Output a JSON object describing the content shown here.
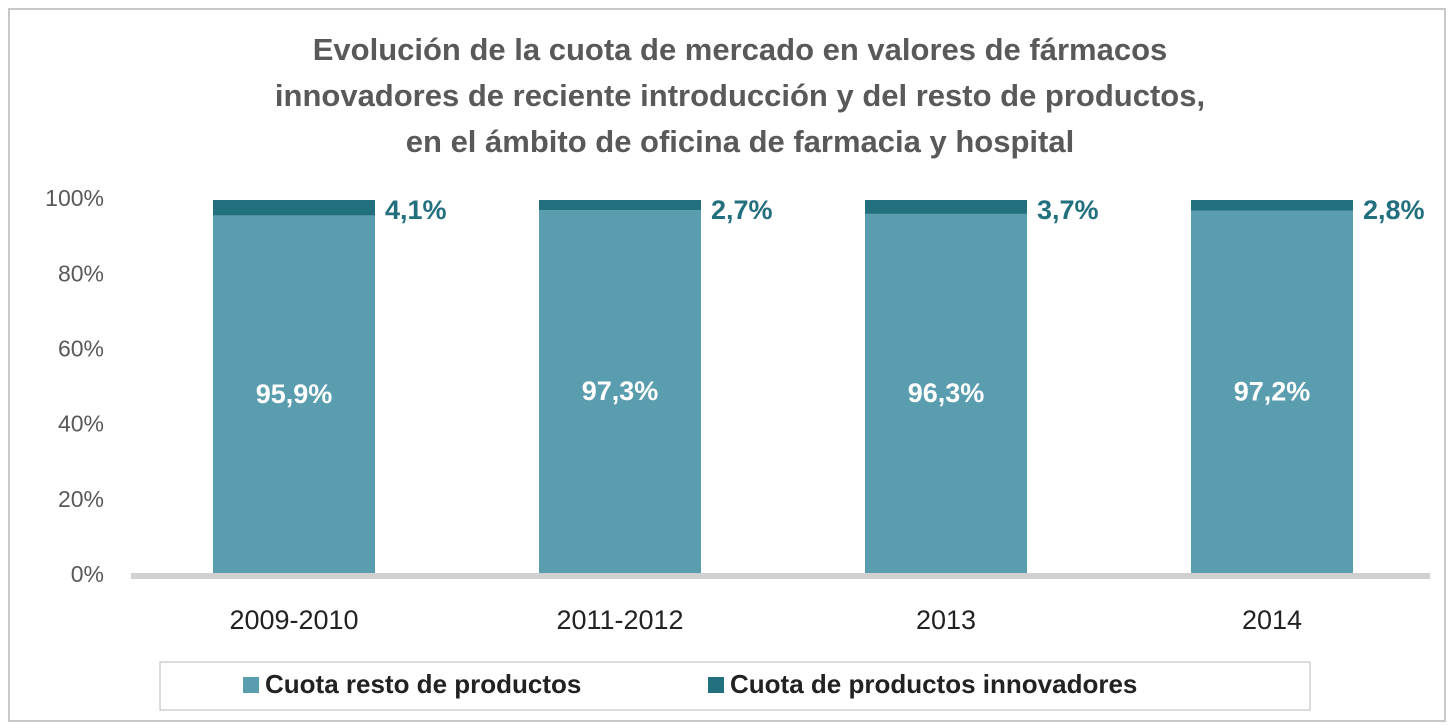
{
  "chart_data": {
    "type": "stacked_bar",
    "title": [
      "Evolución de la cuota de mercado en valores de fármacos",
      "innovadores de reciente introducción y del resto de productos,",
      "en el ámbito de oficina de farmacia y hospital"
    ],
    "categories": [
      "2009-2010",
      "2011-2012",
      "2013",
      "2014"
    ],
    "series": [
      {
        "name": "Cuota resto de productos",
        "color": "#5a9daf",
        "values": [
          95.9,
          97.3,
          96.3,
          97.2
        ],
        "value_labels": [
          "95,9%",
          "97,3%",
          "96,3%",
          "97,2%"
        ]
      },
      {
        "name": "Cuota de productos innovadores",
        "color": "#226f7e",
        "values": [
          4.1,
          2.7,
          3.7,
          2.8
        ],
        "value_labels": [
          "4,1%",
          "2,7%",
          "3,7%",
          "2,8%"
        ]
      }
    ],
    "ylim": [
      0,
      100
    ],
    "yticks": [
      {
        "value": 0,
        "label": "0%"
      },
      {
        "value": 20,
        "label": "20%"
      },
      {
        "value": 40,
        "label": "40%"
      },
      {
        "value": 60,
        "label": "60%"
      },
      {
        "value": 80,
        "label": "80%"
      },
      {
        "value": 100,
        "label": "100%"
      }
    ],
    "legend": "bottom"
  }
}
